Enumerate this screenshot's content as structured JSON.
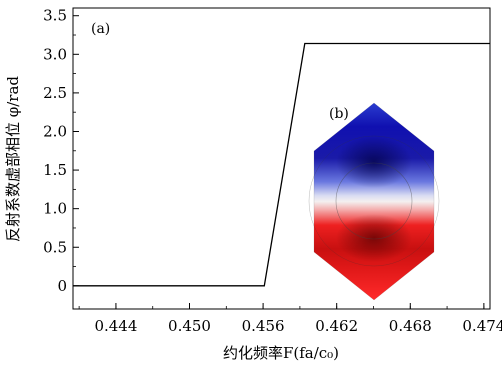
{
  "chart_data": {
    "type": "line",
    "xlabel": "约化频率F(fa/c₀)",
    "ylabel": "反射系数虚部相位 φ/rad",
    "panel_a_label": "(a)",
    "inset_label": "(b)",
    "xlim": [
      0.4405,
      0.4745
    ],
    "ylim": [
      -0.3,
      3.6
    ],
    "xticks": [
      0.444,
      0.45,
      0.456,
      0.462,
      0.468,
      0.474
    ],
    "xtick_labels": [
      "0.444",
      "0.450",
      "0.456",
      "0.462",
      "0.468",
      "0.474"
    ],
    "yticks": [
      0,
      0.5,
      1.0,
      1.5,
      2.0,
      2.5,
      3.0,
      3.5
    ],
    "ytick_labels": [
      "0",
      "0.5",
      "1.0",
      "1.5",
      "2.0",
      "2.5",
      "3.0",
      "3.5"
    ],
    "grid": false,
    "series": [
      {
        "x": [
          0.4405,
          0.4561,
          0.4594,
          0.4745
        ],
        "y": [
          0,
          0,
          3.14,
          3.14
        ]
      }
    ],
    "colors": {
      "line": "#000000",
      "field_positive": "#2020c8",
      "field_negative": "#e01010",
      "field_zero": "#ffffff"
    }
  }
}
